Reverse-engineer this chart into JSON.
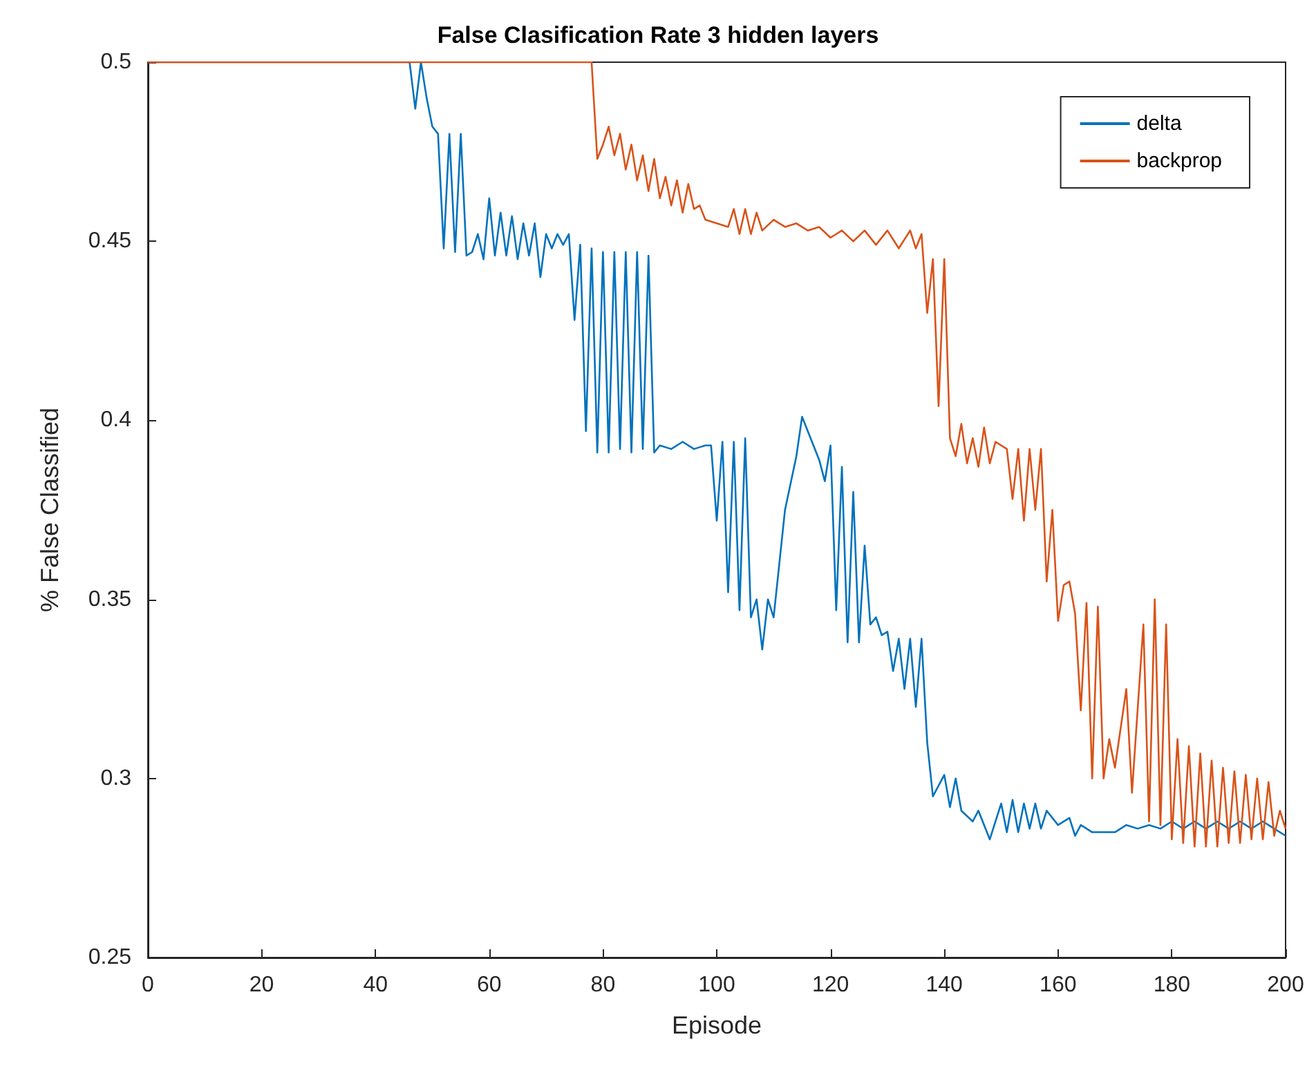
{
  "chart_data": {
    "type": "line",
    "title": "False Clasification Rate 3 hidden layers",
    "xlabel": "Episode",
    "ylabel": "% False Classified",
    "xlim": [
      0,
      200
    ],
    "xticks": [
      0,
      20,
      40,
      60,
      80,
      100,
      120,
      140,
      160,
      180,
      200
    ],
    "ylim": [
      0.25,
      0.5
    ],
    "yticks": [
      0.25,
      0.3,
      0.35,
      0.4,
      0.45,
      0.5
    ],
    "grid": false,
    "legend": "top right",
    "marker": "none",
    "line_style": "solid",
    "series": [
      {
        "name": "delta",
        "color": "#0072bd",
        "x": [
          0,
          46,
          47,
          48,
          49,
          50,
          51,
          52,
          53,
          54,
          55,
          56,
          57,
          58,
          59,
          60,
          61,
          62,
          63,
          64,
          65,
          66,
          67,
          68,
          69,
          70,
          71,
          72,
          73,
          74,
          75,
          76,
          77,
          78,
          79,
          80,
          81,
          82,
          83,
          84,
          85,
          86,
          87,
          88,
          89,
          90,
          92,
          94,
          96,
          98,
          99,
          100,
          101,
          102,
          103,
          104,
          105,
          106,
          107,
          108,
          109,
          110,
          112,
          114,
          115,
          116,
          118,
          119,
          120,
          121,
          122,
          123,
          124,
          125,
          126,
          127,
          128,
          129,
          130,
          131,
          132,
          133,
          134,
          135,
          136,
          137,
          138,
          140,
          141,
          142,
          143,
          145,
          146,
          148,
          150,
          151,
          152,
          153,
          154,
          155,
          156,
          157,
          158,
          160,
          162,
          163,
          164,
          166,
          170,
          172,
          174,
          176,
          178,
          180,
          182,
          184,
          186,
          188,
          190,
          192,
          194,
          196,
          198,
          200
        ],
        "values": [
          0.5,
          0.5,
          0.487,
          0.5,
          0.49,
          0.482,
          0.48,
          0.448,
          0.48,
          0.447,
          0.48,
          0.446,
          0.447,
          0.452,
          0.445,
          0.462,
          0.446,
          0.458,
          0.446,
          0.457,
          0.445,
          0.455,
          0.446,
          0.455,
          0.44,
          0.452,
          0.448,
          0.452,
          0.449,
          0.452,
          0.428,
          0.449,
          0.397,
          0.448,
          0.391,
          0.447,
          0.391,
          0.447,
          0.392,
          0.447,
          0.391,
          0.447,
          0.392,
          0.446,
          0.391,
          0.393,
          0.392,
          0.394,
          0.392,
          0.393,
          0.393,
          0.372,
          0.394,
          0.352,
          0.394,
          0.347,
          0.395,
          0.345,
          0.35,
          0.336,
          0.35,
          0.345,
          0.375,
          0.39,
          0.401,
          0.397,
          0.389,
          0.383,
          0.393,
          0.347,
          0.387,
          0.338,
          0.38,
          0.338,
          0.365,
          0.343,
          0.345,
          0.34,
          0.341,
          0.33,
          0.339,
          0.325,
          0.339,
          0.32,
          0.339,
          0.31,
          0.295,
          0.301,
          0.292,
          0.3,
          0.291,
          0.288,
          0.291,
          0.283,
          0.293,
          0.285,
          0.294,
          0.285,
          0.293,
          0.286,
          0.293,
          0.286,
          0.291,
          0.287,
          0.289,
          0.284,
          0.287,
          0.285,
          0.285,
          0.287,
          0.286,
          0.287,
          0.286,
          0.288,
          0.286,
          0.288,
          0.286,
          0.288,
          0.286,
          0.288,
          0.286,
          0.288,
          0.286,
          0.284
        ]
      },
      {
        "name": "backprop",
        "color": "#d95319",
        "x": [
          0,
          78,
          79,
          80,
          81,
          82,
          83,
          84,
          85,
          86,
          87,
          88,
          89,
          90,
          91,
          92,
          93,
          94,
          95,
          96,
          97,
          98,
          100,
          102,
          103,
          104,
          105,
          106,
          107,
          108,
          110,
          112,
          114,
          116,
          118,
          120,
          122,
          124,
          126,
          128,
          130,
          132,
          134,
          135,
          136,
          137,
          138,
          139,
          140,
          141,
          142,
          143,
          144,
          145,
          146,
          147,
          148,
          149,
          151,
          152,
          153,
          154,
          155,
          156,
          157,
          158,
          159,
          160,
          161,
          162,
          163,
          164,
          165,
          166,
          167,
          168,
          169,
          170,
          172,
          173,
          175,
          176,
          177,
          178,
          179,
          180,
          181,
          182,
          183,
          184,
          185,
          186,
          187,
          188,
          189,
          190,
          191,
          192,
          193,
          194,
          195,
          196,
          197,
          198,
          199,
          200
        ],
        "values": [
          0.5,
          0.5,
          0.473,
          0.477,
          0.482,
          0.474,
          0.48,
          0.47,
          0.477,
          0.467,
          0.474,
          0.464,
          0.473,
          0.462,
          0.468,
          0.46,
          0.467,
          0.458,
          0.466,
          0.459,
          0.46,
          0.456,
          0.455,
          0.454,
          0.459,
          0.452,
          0.459,
          0.452,
          0.458,
          0.453,
          0.456,
          0.454,
          0.455,
          0.453,
          0.454,
          0.451,
          0.453,
          0.45,
          0.453,
          0.449,
          0.453,
          0.448,
          0.453,
          0.448,
          0.452,
          0.43,
          0.445,
          0.404,
          0.445,
          0.395,
          0.39,
          0.399,
          0.388,
          0.395,
          0.387,
          0.398,
          0.388,
          0.394,
          0.392,
          0.378,
          0.392,
          0.372,
          0.392,
          0.375,
          0.392,
          0.355,
          0.375,
          0.344,
          0.354,
          0.355,
          0.346,
          0.319,
          0.349,
          0.3,
          0.348,
          0.3,
          0.311,
          0.303,
          0.325,
          0.296,
          0.343,
          0.288,
          0.35,
          0.287,
          0.343,
          0.283,
          0.311,
          0.282,
          0.309,
          0.281,
          0.307,
          0.281,
          0.305,
          0.281,
          0.303,
          0.282,
          0.302,
          0.282,
          0.301,
          0.283,
          0.3,
          0.283,
          0.299,
          0.284,
          0.291,
          0.286
        ]
      }
    ]
  }
}
